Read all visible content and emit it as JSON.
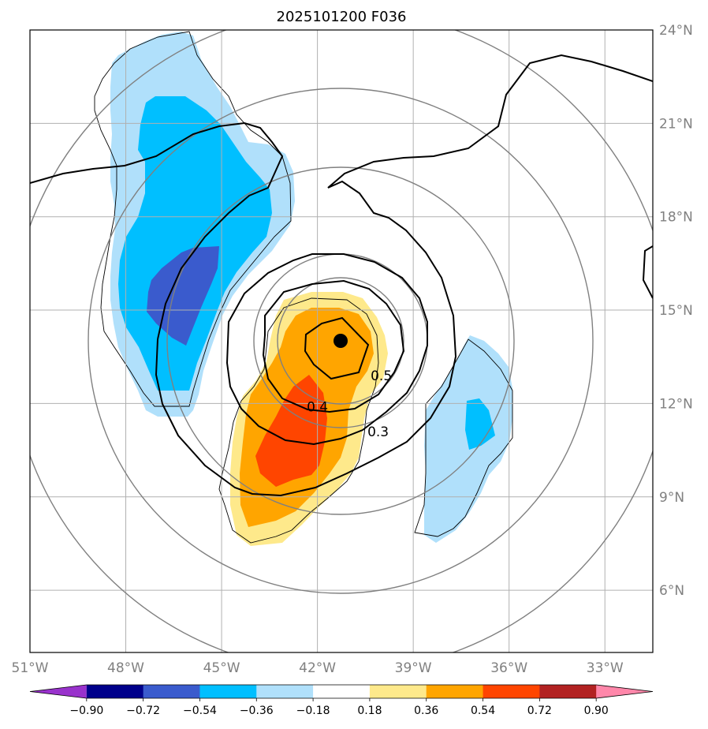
{
  "chart_data": {
    "type": "contour-map",
    "title": "2025101200 F036",
    "lon_range": [
      -51,
      -31.5
    ],
    "lat_range": [
      4,
      24
    ],
    "lon_tick_labels": [
      "51°W",
      "48°W",
      "45°W",
      "42°W",
      "39°W",
      "36°W",
      "33°W"
    ],
    "lon_tick_values": [
      -51,
      -48,
      -45,
      -42,
      -39,
      -36,
      -33
    ],
    "lat_tick_labels": [
      "6°N",
      "9°N",
      "12°N",
      "15°N",
      "18°N",
      "21°N",
      "24°N"
    ],
    "lat_tick_values": [
      6,
      9,
      12,
      15,
      18,
      21,
      24
    ],
    "colorbar": {
      "levels": [
        -0.9,
        -0.72,
        -0.54,
        -0.36,
        -0.18,
        0.18,
        0.36,
        0.54,
        0.72,
        0.9
      ],
      "tick_labels": [
        "−0.90",
        "−0.72",
        "−0.54",
        "−0.36",
        "−0.18",
        "0.18",
        "0.36",
        "0.54",
        "0.72",
        "0.90"
      ],
      "colors": [
        "#9932cc",
        "#00008b",
        "#3a5bcd",
        "#00bfff",
        "#b0e0fb",
        "#ffffff",
        "#fee98b",
        "#ffa500",
        "#ff4500",
        "#b22222",
        "#ff87aa"
      ],
      "extend": "both"
    },
    "center_marker": {
      "lon": -41,
      "lat": 14.1
    },
    "contour_labels": [
      {
        "text": "0.5",
        "lon": -40.0,
        "lat": 12.9
      },
      {
        "text": "0.4",
        "lon": -42.0,
        "lat": 11.9
      },
      {
        "text": "0.3",
        "lon": -40.1,
        "lat": 11.1
      }
    ],
    "range_rings_center": {
      "lon": -41,
      "lat": 14.1
    },
    "range_rings_deg": [
      2,
      3,
      5.8,
      8.3,
      10.5
    ]
  }
}
